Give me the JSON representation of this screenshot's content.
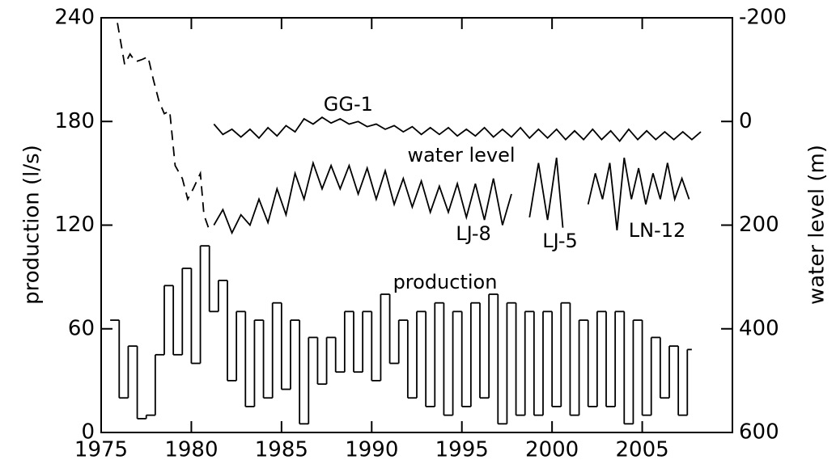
{
  "chart_data": {
    "type": "line",
    "xlim": [
      1975,
      2010
    ],
    "xticks": [
      1975,
      1980,
      1985,
      1990,
      1995,
      2000,
      2005
    ],
    "ylim": [
      0,
      240
    ],
    "yticks": [
      0,
      60,
      120,
      180,
      240
    ],
    "y2lim": [
      600,
      -200
    ],
    "y2ticks": [
      600,
      400,
      200,
      0,
      -200
    ],
    "ylabel": "production (l/s)",
    "y2label": "water level (m)",
    "annotation": "water level",
    "series": [
      {
        "name": "production",
        "step": true,
        "color": "#000000",
        "x": [
          1975.5,
          1976,
          1976.5,
          1977,
          1977.5,
          1978,
          1978.5,
          1979,
          1979.5,
          1980,
          1980.5,
          1981,
          1981.5,
          1982,
          1982.5,
          1983,
          1983.5,
          1984,
          1984.5,
          1985,
          1985.5,
          1986,
          1986.5,
          1987,
          1987.5,
          1988,
          1988.5,
          1989,
          1989.5,
          1990,
          1990.5,
          1991,
          1991.5,
          1992,
          1992.5,
          1993,
          1993.5,
          1994,
          1994.5,
          1995,
          1995.5,
          1996,
          1996.5,
          1997,
          1997.5,
          1998,
          1998.5,
          1999,
          1999.5,
          2000,
          2000.5,
          2001,
          2001.5,
          2002,
          2002.5,
          2003,
          2003.5,
          2004,
          2004.5,
          2005,
          2005.5,
          2006,
          2006.5,
          2007,
          2007.5
        ],
        "values": [
          65,
          20,
          50,
          8,
          10,
          45,
          85,
          45,
          95,
          40,
          108,
          70,
          88,
          30,
          70,
          15,
          65,
          20,
          75,
          25,
          65,
          5,
          55,
          28,
          55,
          35,
          70,
          35,
          70,
          30,
          80,
          40,
          65,
          20,
          70,
          15,
          75,
          10,
          70,
          15,
          75,
          20,
          80,
          5,
          75,
          10,
          70,
          10,
          70,
          15,
          75,
          10,
          65,
          15,
          70,
          15,
          70,
          5,
          65,
          10,
          55,
          20,
          50,
          10,
          48
        ]
      },
      {
        "axis": "y2",
        "dashed": true,
        "color": "#000000",
        "x": [
          1975.9,
          1976.3,
          1976.6,
          1976.9,
          1977.3,
          1977.6,
          1977.9,
          1978.2,
          1978.5,
          1978.8,
          1979.1,
          1979.5,
          1979.8,
          1980.1,
          1980.5,
          1980.7,
          1981.0
        ],
        "values": [
          -190,
          -110,
          -130,
          -115,
          -120,
          -125,
          -80,
          -40,
          -15,
          -20,
          85,
          110,
          150,
          130,
          100,
          180,
          210
        ]
      },
      {
        "name": "GG-1",
        "axis": "y2",
        "color": "#000000",
        "x": [
          1981.25,
          1981.75,
          1982.25,
          1982.75,
          1983.25,
          1983.75,
          1984.25,
          1984.75,
          1985.25,
          1985.75,
          1986.25,
          1986.75,
          1987.25,
          1987.75,
          1988.25,
          1988.75,
          1989.25,
          1989.75,
          1990.25,
          1990.75,
          1991.25,
          1991.75,
          1992.25,
          1992.75,
          1993.25,
          1993.75,
          1994.25,
          1994.75,
          1995.25,
          1995.75,
          1996.25,
          1996.75,
          1997.25,
          1997.75,
          1998.25,
          1998.75,
          1999.25,
          1999.75,
          2000.25,
          2000.75,
          2001.25,
          2001.75,
          2002.25,
          2002.75,
          2003.25,
          2003.75,
          2004.25,
          2004.75,
          2005.25,
          2005.75,
          2006.25,
          2006.75,
          2007.25,
          2007.75,
          2008.25
        ],
        "values": [
          5,
          25,
          15,
          30,
          15,
          32,
          12,
          28,
          8,
          20,
          -5,
          5,
          -8,
          3,
          -5,
          5,
          0,
          10,
          5,
          15,
          8,
          20,
          10,
          25,
          12,
          25,
          12,
          28,
          15,
          28,
          12,
          30,
          15,
          30,
          12,
          32,
          15,
          32,
          15,
          35,
          18,
          35,
          15,
          35,
          18,
          38,
          15,
          35,
          18,
          35,
          20,
          35,
          20,
          35,
          20
        ]
      },
      {
        "name": "LJ-8",
        "axis": "y2",
        "color": "#000000",
        "x": [
          1981.25,
          1981.75,
          1982.25,
          1982.75,
          1983.25,
          1983.75,
          1984.25,
          1984.75,
          1985.25,
          1985.75,
          1986.25,
          1986.75,
          1987.25,
          1987.75,
          1988.25,
          1988.75,
          1989.25,
          1989.75,
          1990.25,
          1990.75,
          1991.25,
          1991.75,
          1992.25,
          1992.75,
          1993.25,
          1993.75,
          1994.25,
          1994.75,
          1995.25,
          1995.75,
          1996.25,
          1996.75,
          1997.25,
          1997.75
        ],
        "values": [
          200,
          170,
          215,
          180,
          200,
          150,
          195,
          130,
          180,
          100,
          150,
          80,
          130,
          85,
          130,
          85,
          140,
          90,
          150,
          95,
          160,
          110,
          165,
          115,
          175,
          125,
          175,
          120,
          185,
          120,
          190,
          110,
          200,
          140
        ]
      },
      {
        "name": "LJ-5",
        "axis": "y2",
        "color": "#000000",
        "x": [
          1998.75,
          1999.25,
          1999.75,
          2000.25,
          2000.6
        ],
        "values": [
          185,
          80,
          190,
          70,
          205
        ]
      },
      {
        "name": "LN-12",
        "axis": "y2",
        "color": "#000000",
        "x": [
          2002.0,
          2002.4,
          2002.8,
          2003.2,
          2003.6,
          2004.0,
          2004.4,
          2004.8,
          2005.2,
          2005.6,
          2006.0,
          2006.4,
          2006.8,
          2007.2,
          2007.6
        ],
        "values": [
          160,
          100,
          150,
          80,
          210,
          70,
          150,
          90,
          160,
          100,
          150,
          80,
          150,
          110,
          150
        ]
      }
    ]
  }
}
